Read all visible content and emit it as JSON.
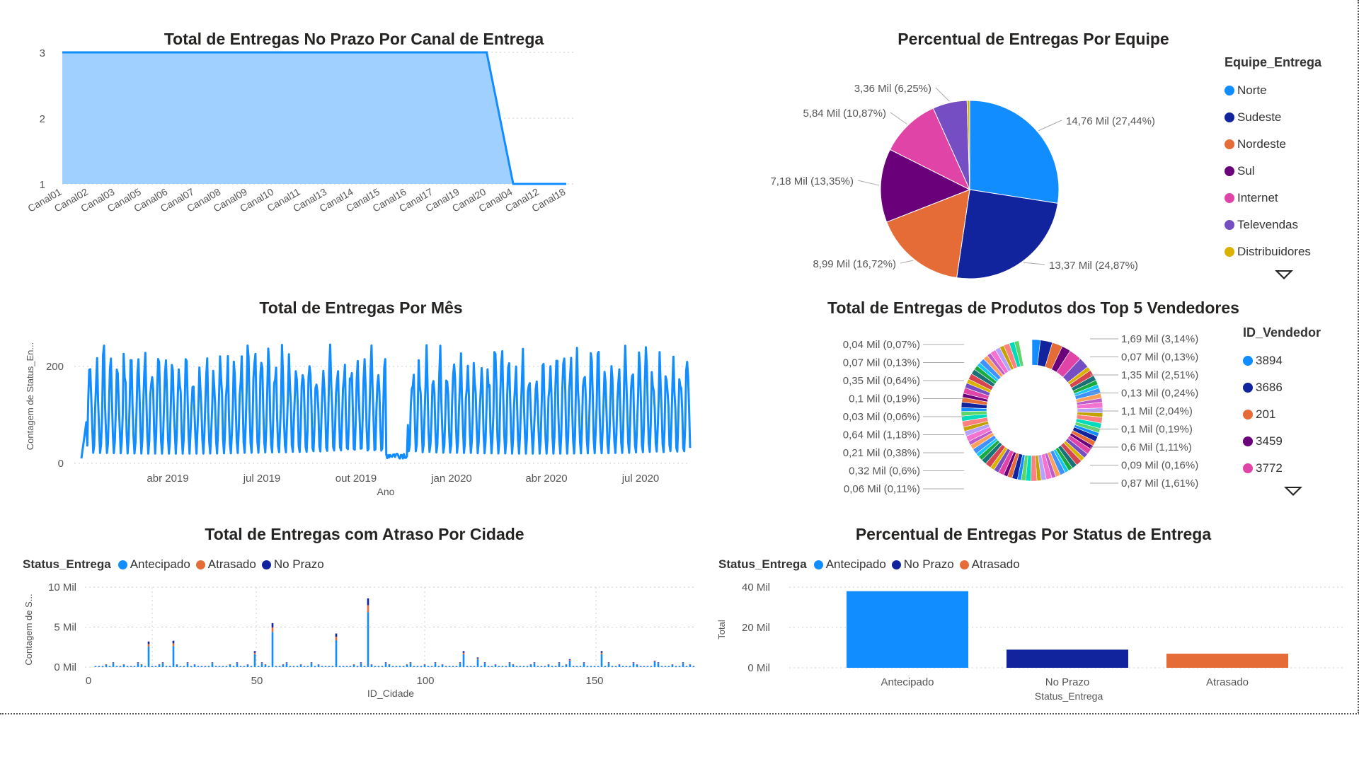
{
  "colors": {
    "blue": "#118DFF",
    "darkblue": "#12239E",
    "orange": "#E66C37",
    "purple": "#6B007B",
    "pink": "#E044A7",
    "violet": "#744EC2",
    "yellow": "#D9B300",
    "area_fill": "#A0D0FF"
  },
  "chart_data": [
    {
      "id": "canal",
      "type": "area",
      "title": "Total de Entregas No Prazo Por Canal de Entrega",
      "xlabel": "",
      "ylabel": "",
      "categories": [
        "Canal01",
        "Canal02",
        "Canal03",
        "Canal05",
        "Canal06",
        "Canal07",
        "Canal08",
        "Canal09",
        "Canal10",
        "Canal11",
        "Canal13",
        "Canal14",
        "Canal15",
        "Canal16",
        "Canal17",
        "Canal19",
        "Canal20",
        "Canal04",
        "Canal12",
        "Canal18"
      ],
      "values": [
        3,
        3,
        3,
        3,
        3,
        3,
        3,
        3,
        3,
        3,
        3,
        3,
        3,
        3,
        3,
        3,
        3,
        1,
        1,
        1
      ],
      "yticks": [
        "1",
        "2",
        "3"
      ],
      "ylim": [
        1,
        3
      ],
      "grid": true
    },
    {
      "id": "equipe",
      "type": "pie",
      "title": "Percentual de Entregas Por Equipe",
      "legend_title": "Equipe_Entrega",
      "legend_position": "right",
      "slices": [
        {
          "name": "Norte",
          "value": 14.76,
          "percent": 27.44,
          "label": "14,76 Mil (27,44%)",
          "color": "#118DFF"
        },
        {
          "name": "Sudeste",
          "value": 13.37,
          "percent": 24.87,
          "label": "13,37 Mil (24,87%)",
          "color": "#12239E"
        },
        {
          "name": "Nordeste",
          "value": 8.99,
          "percent": 16.72,
          "label": "8,99 Mil (16,72%)",
          "color": "#E66C37"
        },
        {
          "name": "Sul",
          "value": 7.18,
          "percent": 13.35,
          "label": "7,18 Mil (13,35%)",
          "color": "#6B007B"
        },
        {
          "name": "Internet",
          "value": 5.84,
          "percent": 10.87,
          "label": "5,84 Mil (10,87%)",
          "color": "#E044A7"
        },
        {
          "name": "Televendas",
          "value": 3.36,
          "percent": 6.25,
          "label": "3,36 Mil (6,25%)",
          "color": "#744EC2"
        },
        {
          "name": "Distribuidores",
          "value": 0.25,
          "percent": 0.5,
          "label": "",
          "color": "#D9B300"
        }
      ]
    },
    {
      "id": "mes",
      "type": "line",
      "title": "Total de Entregas Por Mês",
      "xlabel": "Ano",
      "ylabel": "Contagem de Status_En...",
      "xticks": [
        "abr 2019",
        "jul 2019",
        "out 2019",
        "jan 2020",
        "abr 2020",
        "jul 2020"
      ],
      "yticks": [
        "0",
        "200"
      ],
      "ylim": [
        0,
        270
      ],
      "grid": true
    },
    {
      "id": "vendedores",
      "type": "pie",
      "title": "Total de Entregas de Produtos dos Top 5 Vendedores",
      "legend_title": "ID_Vendedor",
      "legend_items": [
        {
          "name": "3894",
          "color": "#118DFF"
        },
        {
          "name": "3686",
          "color": "#12239E"
        },
        {
          "name": "201",
          "color": "#E66C37"
        },
        {
          "name": "3459",
          "color": "#6B007B"
        },
        {
          "name": "3772",
          "color": "#E044A7"
        }
      ],
      "labels_left": [
        "0,04 Mil (0,07%)",
        "0,07 Mil (0,13%)",
        "0,35 Mil (0,64%)",
        "0,1 Mil (0,19%)",
        "0,03 Mil (0,06%)",
        "0,64 Mil (1,18%)",
        "0,21 Mil (0,38%)",
        "0,32 Mil (0,6%)",
        "0,06 Mil (0,11%)"
      ],
      "labels_right": [
        "1,69 Mil (3,14%)",
        "0,07 Mil (0,13%)",
        "1,35 Mil (2,51%)",
        "0,13 Mil (0,24%)",
        "1,1 Mil (2,04%)",
        "0,1 Mil (0,19%)",
        "0,6 Mil (1,11%)",
        "0,09 Mil (0,16%)",
        "0,87 Mil (1,61%)"
      ]
    },
    {
      "id": "cidade",
      "type": "bar",
      "title": "Total de Entregas com Atraso Por Cidade",
      "legend_title": "Status_Entrega",
      "legend_position": "top-left",
      "series": [
        {
          "name": "Antecipado",
          "color": "#118DFF"
        },
        {
          "name": "Atrasado",
          "color": "#E66C37"
        },
        {
          "name": "No Prazo",
          "color": "#12239E"
        }
      ],
      "xlabel": "ID_Cidade",
      "ylabel": "Contagem de S...",
      "xticks": [
        "0",
        "50",
        "100",
        "150"
      ],
      "yticks": [
        "0 Mil",
        "5 Mil",
        "10 Mil"
      ],
      "ylim": [
        0,
        10
      ],
      "grid": true
    },
    {
      "id": "status",
      "type": "bar",
      "title": "Percentual de Entregas Por Status de Entrega",
      "legend_title": "Status_Entrega",
      "legend_position": "top-left",
      "categories": [
        "Antecipado",
        "No Prazo",
        "Atrasado"
      ],
      "values": [
        38,
        9,
        7
      ],
      "colors": [
        "#118DFF",
        "#12239E",
        "#E66C37"
      ],
      "xlabel": "Status_Entrega",
      "ylabel": "Total",
      "yticks": [
        "0 Mil",
        "20 Mil",
        "40 Mil"
      ],
      "ylim": [
        0,
        40
      ],
      "grid": true
    }
  ]
}
